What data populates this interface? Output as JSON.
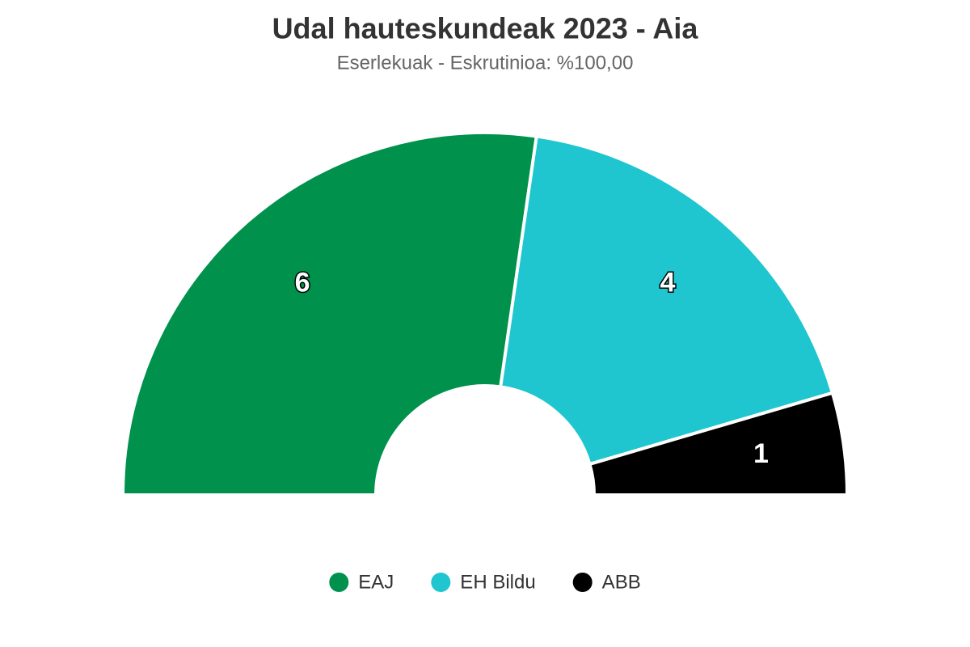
{
  "chart_data": {
    "type": "pie",
    "title": "Udal hauteskundeak 2023 - Aia",
    "subtitle": "Eserlekuak - Eskrutinioa: %100,00",
    "categories": [
      "EAJ",
      "EH Bildu",
      "ABB"
    ],
    "values": [
      6,
      4,
      1
    ],
    "colors": [
      "#00914c",
      "#1fc6d0",
      "#000000"
    ]
  }
}
